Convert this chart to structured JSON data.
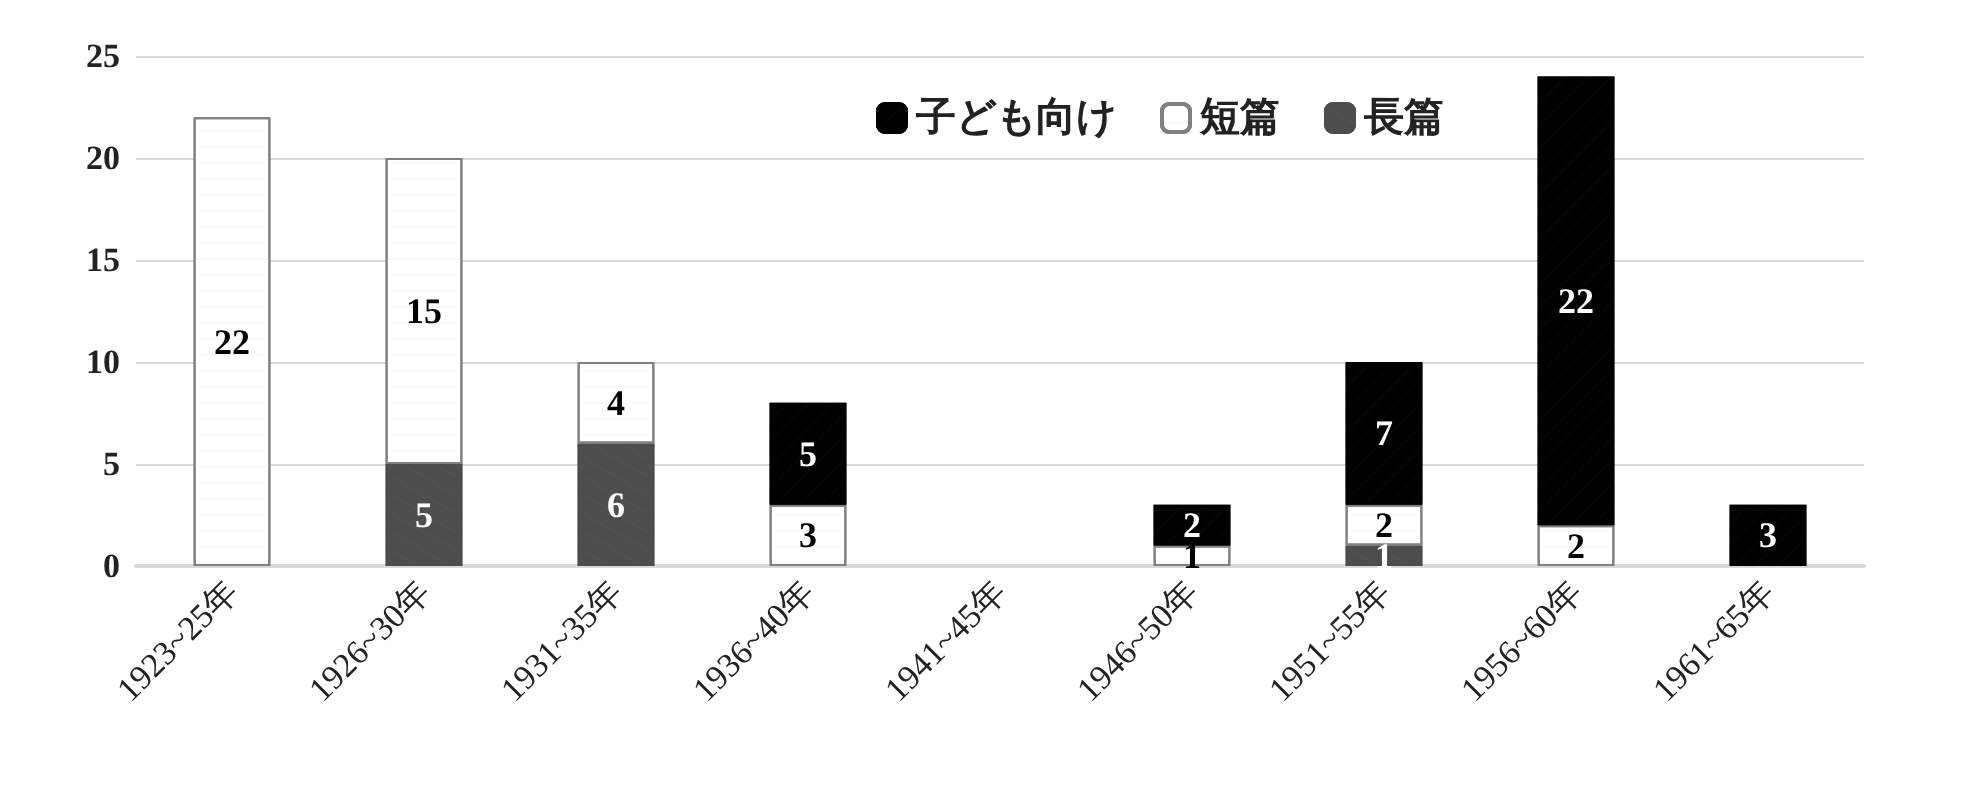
{
  "chart_data": {
    "type": "bar",
    "stacked": true,
    "categories": [
      "1923~25年",
      "1926~30年",
      "1931~35年",
      "1936~40年",
      "1941~45年",
      "1946~50年",
      "1951~55年",
      "1956~60年",
      "1961~65年"
    ],
    "series": [
      {
        "name": "長篇",
        "color": "#4d4d4d",
        "values": [
          null,
          5,
          6,
          null,
          null,
          null,
          1,
          null,
          null
        ]
      },
      {
        "name": "短篇",
        "color": "#ffffff",
        "values": [
          22,
          15,
          4,
          3,
          null,
          1,
          2,
          2,
          null
        ]
      },
      {
        "name": "子ども向け",
        "color": "#000000",
        "values": [
          null,
          null,
          null,
          5,
          null,
          2,
          7,
          22,
          3
        ]
      }
    ],
    "ylim": [
      0,
      25
    ],
    "yticks": [
      0,
      5,
      10,
      15,
      20,
      25
    ],
    "grid": "y",
    "legend": "top right",
    "data_labels": true
  }
}
